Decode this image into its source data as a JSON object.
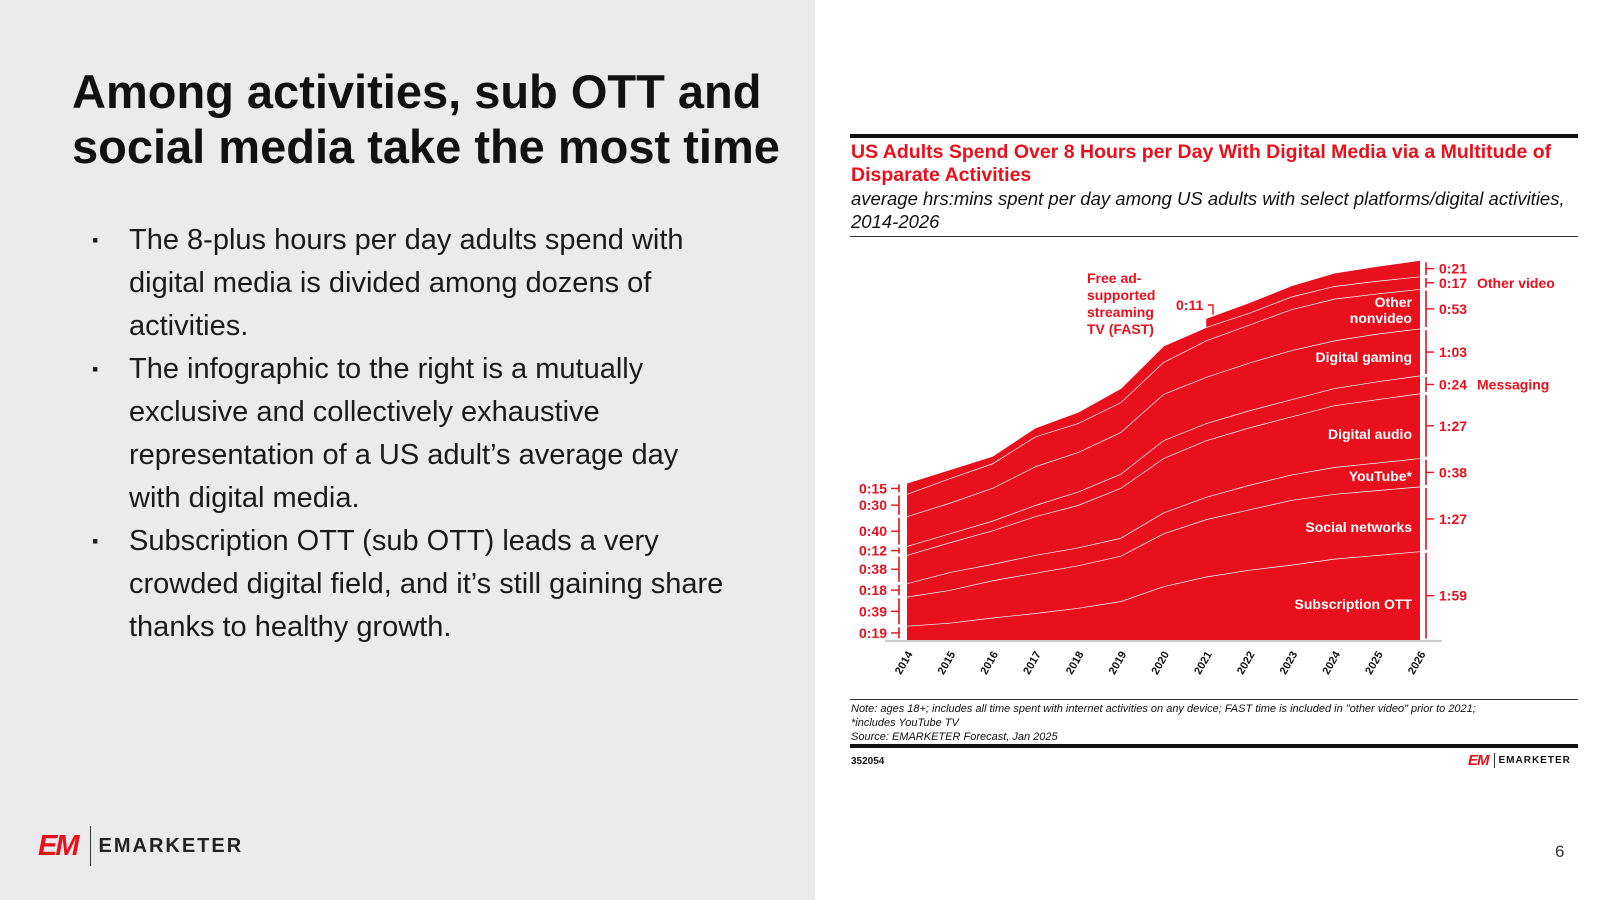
{
  "slide": {
    "title": "Among activities, sub OTT and social media take the most time",
    "bullets": [
      "The 8-plus hours per day adults spend with digital media is divided among dozens of activities.",
      "The infographic to the right is a mutually exclusive and collectively exhaustive representation of a US adult’s average day with digital media.",
      "Subscription OTT (sub OTT) leads a very crowded digital field, and it’s still gaining share thanks to healthy growth."
    ],
    "bullet_marker": "▪",
    "logo_mark": "EM",
    "logo_name": "EMARKETER",
    "page_number": "6"
  },
  "colors": {
    "brand_red": "#e8101c",
    "band_line": "#ffffff",
    "panel_gray": "#ebebeb"
  },
  "chart_data": {
    "type": "area",
    "stacked": true,
    "title": "US Adults Spend Over 8 Hours per Day With Digital Media via a Multitude of Disparate Activities",
    "subtitle": "average hrs:mins spent per day among US adults with select platforms/digital activities, 2014-2026",
    "unit": "minutes per day",
    "categories": [
      "2014",
      "2015",
      "2016",
      "2017",
      "2018",
      "2019",
      "2020",
      "2021",
      "2022",
      "2023",
      "2024",
      "2025",
      "2026"
    ],
    "series": [
      {
        "name": "Subscription OTT",
        "values": [
          19,
          23,
          30,
          36,
          43,
          52,
          72,
          85,
          94,
          101,
          109,
          114,
          119
        ]
      },
      {
        "name": "Social networks",
        "values": [
          39,
          44,
          50,
          54,
          57,
          61,
          71,
          77,
          81,
          87,
          87,
          87,
          87
        ]
      },
      {
        "name": "YouTube*",
        "values": [
          18,
          24,
          22,
          24,
          24,
          24,
          28,
          30,
          33,
          34,
          36,
          37,
          38
        ]
      },
      {
        "name": "Digital audio",
        "values": [
          38,
          40,
          45,
          52,
          57,
          67,
          73,
          76,
          77,
          78,
          83,
          85,
          87
        ]
      },
      {
        "name": "Messaging",
        "values": [
          12,
          12,
          13,
          15,
          18,
          19,
          24,
          23,
          23,
          23,
          23,
          24,
          24
        ]
      },
      {
        "name": "Digital gaming",
        "values": [
          40,
          41,
          44,
          52,
          53,
          56,
          62,
          62,
          64,
          66,
          64,
          64,
          63
        ]
      },
      {
        "name": "Other nonvideo",
        "values": [
          30,
          33,
          33,
          40,
          39,
          40,
          43,
          49,
          51,
          55,
          56,
          54,
          53
        ]
      },
      {
        "name": "Other video",
        "values": [
          15,
          12,
          10,
          12,
          15,
          19,
          22,
          18,
          16,
          17,
          17,
          17,
          17
        ]
      },
      {
        "name": "Free ad-supported streaming TV (FAST)",
        "values": [
          null,
          null,
          null,
          null,
          null,
          null,
          null,
          11,
          13,
          14,
          17,
          19,
          21
        ]
      }
    ],
    "start_labels_2014": [
      "0:19",
      "0:39",
      "0:18",
      "0:38",
      "0:12",
      "0:40",
      "0:30",
      "0:15"
    ],
    "end_labels_2026": [
      "1:59",
      "1:27",
      "0:38",
      "1:27",
      "0:24",
      "1:03",
      "0:53",
      "0:17",
      "0:21"
    ],
    "fast_label_2021": "0:11",
    "inline_labels": {
      "sub_ott": "Subscription OTT",
      "social": "Social networks",
      "youtube": "YouTube*",
      "audio": "Digital audio",
      "gaming": "Digital gaming",
      "nonvideo_1": "Other",
      "nonvideo_2": "nonvideo",
      "other_video": "Other video",
      "messaging": "Messaging",
      "fast": [
        "Free ad-",
        "supported",
        "streaming",
        "TV (FAST)"
      ]
    },
    "ylim": [
      0,
      510
    ],
    "grid": false,
    "legend": "none",
    "note": "Note: ages 18+; includes all time spent with internet activities on any device; FAST time is included in \"other video\" prior to 2021;",
    "note2": "*includes YouTube TV",
    "source": "Source: EMARKETER Forecast, Jan 2025",
    "chart_id": "352054"
  }
}
